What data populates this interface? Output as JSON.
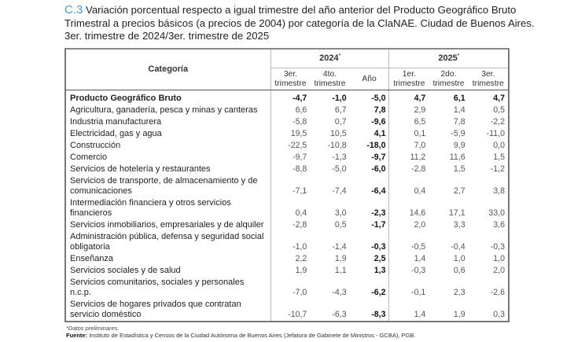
{
  "title": {
    "code": "C.3",
    "text": "Variación porcentual respecto a igual trimestre del año anterior del Producto Geográfico Bruto Trimestral a precios básicos (a precios de 2004) por categoría de la ClaNAE. Ciudad de Buenos Aires. 3er. trimestre de 2024/3er. trimestre de 2025"
  },
  "table": {
    "category_header": "Categoría",
    "years": [
      {
        "label": "2024",
        "mark": "*"
      },
      {
        "label": "2025",
        "mark": "*"
      }
    ],
    "columns": [
      "3er. trimestre",
      "4to. trimestre",
      "Año",
      "1er. trimestre",
      "2do. trimestre",
      "3er. trimestre"
    ],
    "rows": [
      {
        "cat": "Producto Geográfico Bruto",
        "v": [
          "-4,7",
          "-1,0",
          "-5,0",
          "4,7",
          "6,1",
          "4,7"
        ]
      },
      {
        "cat": "Agricultura, ganadería, pesca y minas y canteras",
        "v": [
          "6,6",
          "6,7",
          "7,8",
          "2,9",
          "1,4",
          "0,5"
        ]
      },
      {
        "cat": "Industria manufacturera",
        "v": [
          "-5,8",
          "0,7",
          "-9,6",
          "6,5",
          "7,8",
          "-2,2"
        ]
      },
      {
        "cat": "Electricidad, gas y agua",
        "v": [
          "19,5",
          "10,5",
          "4,1",
          "0,1",
          "-5,9",
          "-11,0"
        ]
      },
      {
        "cat": "Construcción",
        "v": [
          "-22,5",
          "-10,8",
          "-18,0",
          "7,0",
          "9,9",
          "0,0"
        ]
      },
      {
        "cat": "Comercio",
        "v": [
          "-9,7",
          "-1,3",
          "-9,7",
          "11,2",
          "11,6",
          "1,5"
        ]
      },
      {
        "cat": "Servicios de hotelería y restaurantes",
        "v": [
          "-8,8",
          "-5,0",
          "-6,0",
          "-2,8",
          "1,5",
          "-1,2"
        ]
      },
      {
        "cat": "Servicios de transporte, de almacenamiento y de comunicaciones",
        "v": [
          "-7,1",
          "-7,4",
          "-6,4",
          "0,4",
          "2,7",
          "3,8"
        ]
      },
      {
        "cat": "Intermediación financiera y otros servicios financieros",
        "v": [
          "0,4",
          "3,0",
          "-2,3",
          "14,6",
          "17,1",
          "33,0"
        ]
      },
      {
        "cat": "Servicios inmobiliarios, empresariales y de alquiler",
        "v": [
          "-2,8",
          "0,5",
          "-1,7",
          "2,0",
          "3,3",
          "3,6"
        ]
      },
      {
        "cat": "Administración pública, defensa y seguridad social obligatoria",
        "v": [
          "-1,0",
          "-1,4",
          "-0,3",
          "-0,5",
          "-0,4",
          "-0,3"
        ]
      },
      {
        "cat": "Enseñanza",
        "v": [
          "2,2",
          "1,9",
          "2,5",
          "1,4",
          "1,0",
          "1,0"
        ]
      },
      {
        "cat": "Servicios sociales y de salud",
        "v": [
          "1,9",
          "1,1",
          "1,3",
          "-0,3",
          "0,6",
          "2,0"
        ]
      },
      {
        "cat": "Servicios comunitarios, sociales y personales n.c.p.",
        "v": [
          "-7,0",
          "-4,3",
          "-6,2",
          "-0,1",
          "2,3",
          "-2,6"
        ]
      },
      {
        "cat": "Servicios de hogares privados que contratan servicio doméstico",
        "v": [
          "-10,7",
          "-6,3",
          "-8,3",
          "1,4",
          "1,9",
          "0,3"
        ]
      }
    ]
  },
  "footer": {
    "note": "*Datos preliminares.",
    "source_label": "Fuente:",
    "source": "Instituto de Estadística y Censos de la Ciudad Autónoma de Buenos Aires (Jefatura de Gabinete de Ministros - GCBA), PGB."
  }
}
